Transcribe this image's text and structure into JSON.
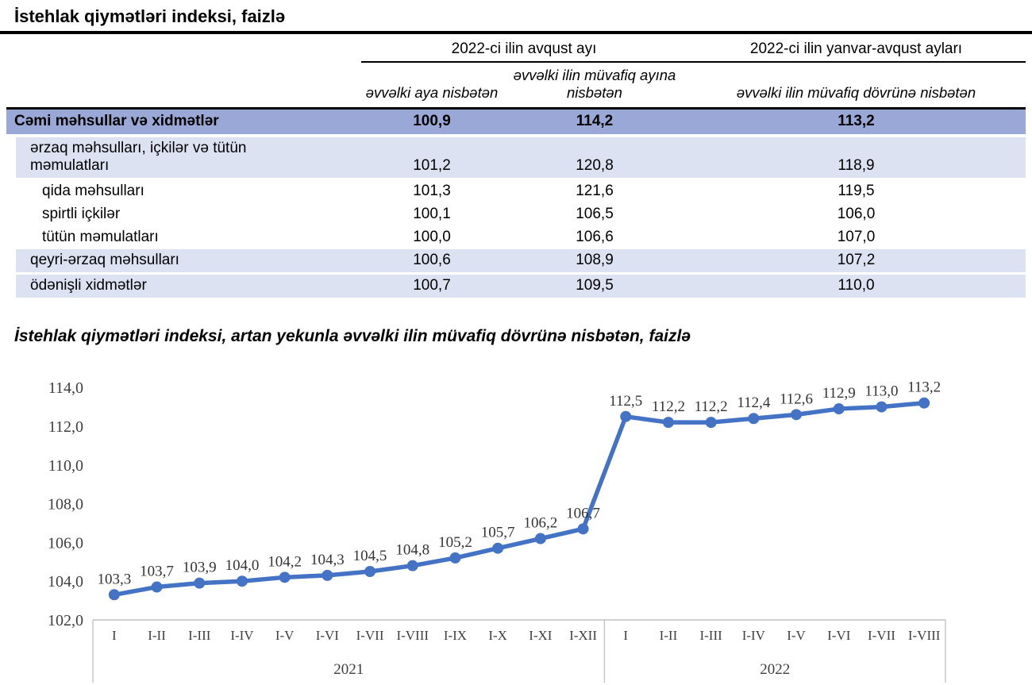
{
  "page": {
    "title": "İstehlak qiymətləri indeksi, faizlə"
  },
  "table": {
    "col_groups": [
      {
        "label": "2022-ci ilin avqust ayı"
      },
      {
        "label": "2022-ci ilin yanvar-avqust ayları"
      }
    ],
    "sub_headers": [
      "əvvəlki aya nisbətən",
      "əvvəlki ilin müvafiq ayına nisbətən",
      "əvvəlki ilin müvafiq dövrünə nisbətən"
    ],
    "rows": [
      {
        "label": "Cəmi məhsullar və xidmətlər",
        "values": [
          "100,9",
          "114,2",
          "113,2"
        ]
      },
      {
        "label": "ərzaq məhsulları, içkilər və tütün məmulatları",
        "values": [
          "101,2",
          "120,8",
          "118,9"
        ]
      },
      {
        "label": "qida məhsulları",
        "values": [
          "101,3",
          "121,6",
          "119,5"
        ]
      },
      {
        "label": "spirtli içkilər",
        "values": [
          "100,1",
          "106,5",
          "106,0"
        ]
      },
      {
        "label": "tütün məmulatları",
        "values": [
          "100,0",
          "106,6",
          "107,0"
        ]
      },
      {
        "label": "qeyri-ərzaq məhsulları",
        "values": [
          "100,6",
          "108,9",
          "107,2"
        ]
      },
      {
        "label": "ödənişli xidmətlər",
        "values": [
          "100,7",
          "109,5",
          "110,0"
        ]
      }
    ]
  },
  "chart": {
    "title": "İstehlak qiymətləri indeksi, artan yekunla əvvəlki ilin müvafiq dövrünə nisbətən, faizlə"
  },
  "chart_data": {
    "type": "line",
    "title": "İstehlak qiymətləri indeksi, artan yekunla əvvəlki ilin müvafiq dövrünə nisbətən, faizlə",
    "groups": [
      {
        "year": "2021",
        "categories": [
          "I",
          "I-II",
          "I-III",
          "I-IV",
          "I-V",
          "I-VI",
          "I-VII",
          "I-VIII",
          "I-IX",
          "I-X",
          "I-XI",
          "I-XII"
        ],
        "values": [
          103.3,
          103.7,
          103.9,
          104.0,
          104.2,
          104.3,
          104.5,
          104.8,
          105.2,
          105.7,
          106.2,
          106.7
        ]
      },
      {
        "year": "2022",
        "categories": [
          "I",
          "I-II",
          "I-III",
          "I-IV",
          "I-V",
          "I-VI",
          "I-VII",
          "I-VIII"
        ],
        "values": [
          112.5,
          112.2,
          112.2,
          112.4,
          112.6,
          112.9,
          113.0,
          113.2
        ]
      }
    ],
    "ylim": [
      102.0,
      114.0
    ],
    "ytick_step": 2.0,
    "decimal_separator": ",",
    "grid": false,
    "legend": false,
    "data_labels": true,
    "line_color": "#4472C4",
    "marker": "circle",
    "label_color": "#333333",
    "axis_text_color": "#3E3E3E",
    "axis_box_color": "#C3C3C3"
  }
}
